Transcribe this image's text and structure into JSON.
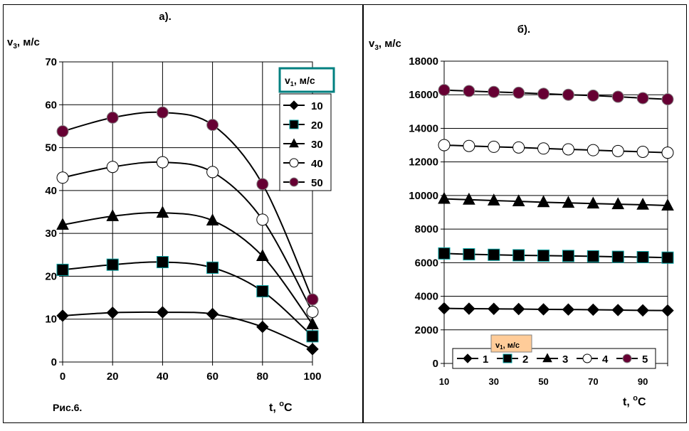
{
  "figure_caption": "Рис.6.",
  "chart_data": [
    {
      "type": "line",
      "title": "а).",
      "ylabel_base": "v",
      "ylabel_sub": "3",
      "ylabel_unit": ", м/с",
      "xlabel_base": "t, ",
      "xlabel_sup": "o",
      "xlabel_unit": "C",
      "x": [
        0,
        20,
        40,
        60,
        80,
        100
      ],
      "xlim": [
        0,
        100
      ],
      "ylim": [
        0,
        70
      ],
      "xticks": [
        0,
        20,
        40,
        60,
        80,
        100
      ],
      "yticks": [
        0,
        10,
        20,
        30,
        40,
        50,
        60,
        70
      ],
      "grid": true,
      "legend_title_base": "v",
      "legend_title_sub": "1",
      "legend_title_unit": ", м/с",
      "legend_position": "right",
      "series": [
        {
          "name": "10",
          "marker": "diamond",
          "color": "#000000",
          "values": [
            10.8,
            11.5,
            11.6,
            11.2,
            8.2,
            3.0
          ]
        },
        {
          "name": "20",
          "marker": "square",
          "color": "#000000",
          "values": [
            21.5,
            22.7,
            23.3,
            22.0,
            16.5,
            6.0
          ]
        },
        {
          "name": "30",
          "marker": "triangle",
          "color": "#000000",
          "values": [
            32.0,
            34.0,
            34.8,
            33.0,
            24.7,
            8.8
          ]
        },
        {
          "name": "40",
          "marker": "circle",
          "color": "#ffffff",
          "values": [
            43.0,
            45.5,
            46.6,
            44.3,
            33.2,
            11.7
          ]
        },
        {
          "name": "50",
          "marker": "circle",
          "color": "#660033",
          "values": [
            53.8,
            57.0,
            58.2,
            55.3,
            41.5,
            14.6
          ]
        }
      ]
    },
    {
      "type": "line",
      "title": "б).",
      "ylabel_base": "v",
      "ylabel_sub": "3",
      "ylabel_unit": ", м/с",
      "xlabel_base": "t, ",
      "xlabel_sup": "o",
      "xlabel_unit": "C",
      "x": [
        10,
        20,
        30,
        40,
        50,
        60,
        70,
        80,
        90,
        100
      ],
      "xlim": [
        10,
        100
      ],
      "ylim": [
        0,
        18000
      ],
      "xticks": [
        10,
        30,
        50,
        70,
        90
      ],
      "yticks": [
        0,
        2000,
        4000,
        6000,
        8000,
        10000,
        12000,
        14000,
        16000,
        18000
      ],
      "grid": true,
      "legend_title_base": "v",
      "legend_title_sub": "1",
      "legend_title_unit": ", м/с",
      "legend_position": "bottom",
      "series": [
        {
          "name": "1",
          "marker": "diamond",
          "color": "#000000",
          "values": [
            3280,
            3260,
            3250,
            3240,
            3220,
            3210,
            3200,
            3180,
            3160,
            3150
          ]
        },
        {
          "name": "2",
          "marker": "square",
          "color": "#000000",
          "values": [
            6550,
            6500,
            6470,
            6440,
            6420,
            6400,
            6380,
            6350,
            6330,
            6300
          ]
        },
        {
          "name": "3",
          "marker": "triangle",
          "color": "#000000",
          "values": [
            9800,
            9750,
            9700,
            9650,
            9600,
            9560,
            9520,
            9480,
            9450,
            9400
          ]
        },
        {
          "name": "4",
          "marker": "circle",
          "color": "#ffffff",
          "values": [
            13000,
            12950,
            12900,
            12860,
            12800,
            12750,
            12700,
            12650,
            12600,
            12550
          ]
        },
        {
          "name": "5",
          "marker": "circle",
          "color": "#660033",
          "values": [
            16280,
            16220,
            16170,
            16120,
            16060,
            16000,
            15950,
            15880,
            15800,
            15730
          ]
        }
      ]
    }
  ]
}
